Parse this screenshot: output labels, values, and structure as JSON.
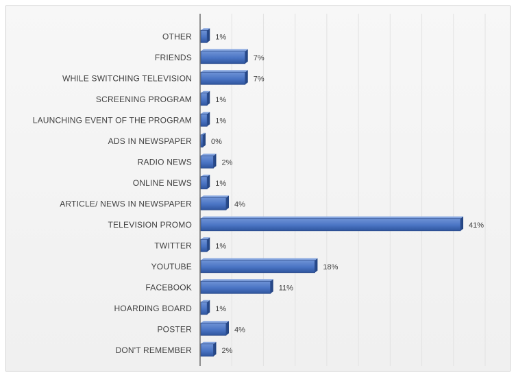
{
  "chart_data": {
    "type": "bar",
    "orientation": "horizontal",
    "categories": [
      "OTHER",
      "FRIENDS",
      "WHILE SWITCHING TELEVISION",
      "SCREENING PROGRAM",
      "LAUNCHING EVENT OF THE PROGRAM",
      "ADS IN NEWSPAPER",
      "RADIO NEWS",
      "ONLINE NEWS",
      "ARTICLE/ NEWS IN NEWSPAPER",
      "TELEVISION PROMO",
      "TWITTER",
      "YOUTUBE",
      "FACEBOOK",
      "HOARDING BOARD",
      "POSTER",
      "DON'T REMEMBER"
    ],
    "values": [
      1,
      7,
      7,
      1,
      1,
      0,
      2,
      1,
      4,
      41,
      1,
      18,
      11,
      1,
      4,
      2
    ],
    "data_labels": [
      "1%",
      "7%",
      "7%",
      "1%",
      "1%",
      "0%",
      "2%",
      "1%",
      "4%",
      "41%",
      "1%",
      "18%",
      "11%",
      "1%",
      "4%",
      "2%"
    ],
    "xlim": [
      0,
      45
    ],
    "grid": true,
    "bar_color": "#4a74c4",
    "title": "",
    "xlabel": "",
    "ylabel": ""
  }
}
